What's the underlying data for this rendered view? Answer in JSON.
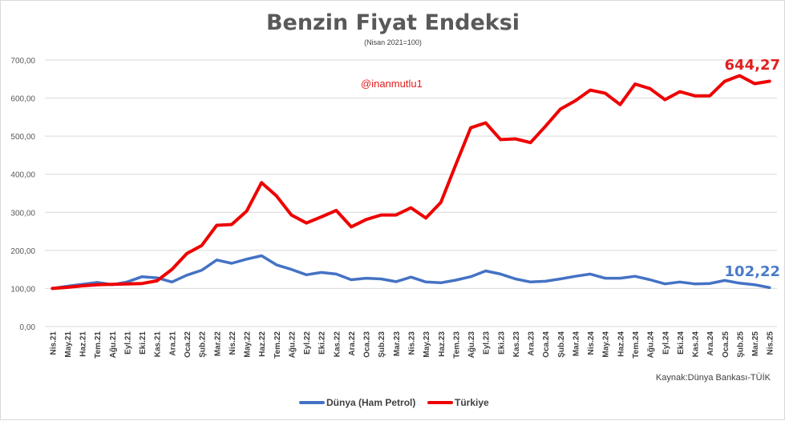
{
  "chart_data": {
    "type": "line",
    "title": "Benzin Fiyat Endeksi",
    "subtitle": "(Nisan 2021=100)",
    "ylim": [
      0,
      700
    ],
    "yticks": [
      "0,00",
      "100,00",
      "200,00",
      "300,00",
      "400,00",
      "500,00",
      "600,00",
      "700,00"
    ],
    "categories": [
      "Nis.21",
      "May.21",
      "Haz.21",
      "Tem.21",
      "Ağu.21",
      "Eyl.21",
      "Eki.21",
      "Kas.21",
      "Ara.21",
      "Oca.22",
      "Şub.22",
      "Mar.22",
      "Nis.22",
      "May.22",
      "Haz.22",
      "Tem.22",
      "Ağu.22",
      "Eyl.22",
      "Eki.22",
      "Kas.22",
      "Ara.22",
      "Oca.23",
      "Şub.23",
      "Mar.23",
      "Nis.23",
      "May.23",
      "Haz.23",
      "Tem.23",
      "Ağu.23",
      "Eyl.23",
      "Eki.23",
      "Kas.23",
      "Ara.23",
      "Oca.24",
      "Şub.24",
      "Mar.24",
      "Nis.24",
      "May.24",
      "Haz.24",
      "Tem.24",
      "Ağu.24",
      "Eyl.24",
      "Eki.24",
      "Kas.24",
      "Ara.24",
      "Oca.25",
      "Şub.25",
      "Mar.25",
      "Nis.25"
    ],
    "series": [
      {
        "name": "Dünya (Ham Petrol)",
        "color": "#4472c4",
        "values": [
          100,
          106,
          111,
          116,
          110,
          117,
          131,
          128,
          117,
          135,
          148,
          175,
          166,
          177,
          186,
          162,
          150,
          136,
          142,
          138,
          123,
          127,
          125,
          118,
          130,
          117,
          115,
          122,
          131,
          146,
          138,
          125,
          117,
          119,
          125,
          132,
          138,
          127,
          127,
          132,
          123,
          112,
          117,
          112,
          113,
          121,
          114,
          110,
          102.22
        ]
      },
      {
        "name": "Türkiye",
        "color": "#ee0000",
        "values": [
          100,
          103,
          107,
          110,
          111,
          112,
          113,
          120,
          150,
          192,
          213,
          266,
          268,
          303,
          378,
          343,
          293,
          272,
          288,
          305,
          262,
          281,
          293,
          293,
          312,
          285,
          326,
          425,
          522,
          535,
          491,
          493,
          483,
          526,
          571,
          593,
          621,
          613,
          583,
          637,
          625,
          596,
          617,
          606,
          606,
          644,
          659,
          638,
          644.27
        ]
      }
    ],
    "end_labels": {
      "turkiye": "644,27",
      "dunya": "102,22"
    },
    "annotation": "@inanmutlu1",
    "source": "Kaynak:Dünya Bankası-TÜİK",
    "legend_position": "bottom"
  }
}
